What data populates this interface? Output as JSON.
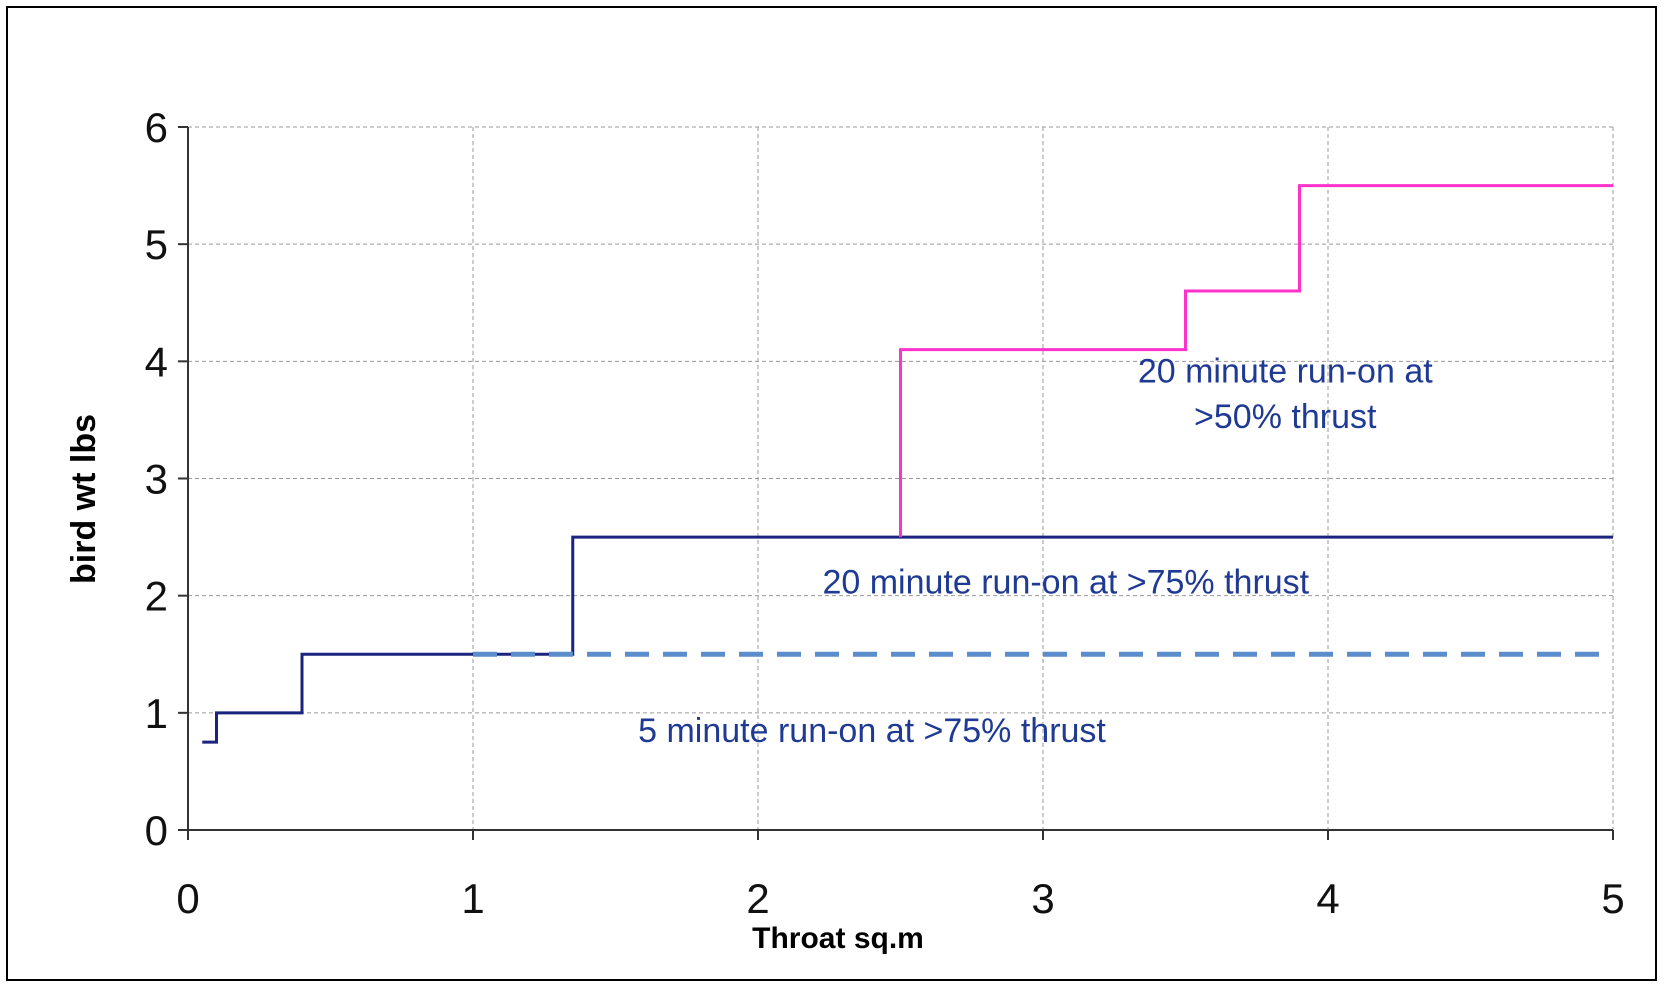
{
  "chart_data": {
    "type": "line",
    "title": "",
    "xlabel": "Throat sq.m",
    "ylabel": "bird wt  lbs",
    "xlim": [
      0,
      5
    ],
    "ylim": [
      0,
      6
    ],
    "xticks": [
      "0",
      "1",
      "2",
      "3",
      "4",
      "5"
    ],
    "yticks": [
      "0",
      "1",
      "2",
      "3",
      "4",
      "5",
      "6"
    ],
    "grid": true,
    "legend": "none",
    "series": [
      {
        "style": "solid",
        "color": "#1a237e",
        "step": true,
        "x": [
          0.05,
          0.1,
          0.1,
          0.4,
          0.4,
          1.35,
          1.35,
          5.0
        ],
        "y": [
          0.75,
          0.75,
          1.0,
          1.0,
          1.5,
          1.5,
          2.5,
          2.5
        ]
      },
      {
        "style": "solid",
        "color": "#ff33cc",
        "step": true,
        "x": [
          2.5,
          2.5,
          3.5,
          3.5,
          3.9,
          3.9,
          5.0
        ],
        "y": [
          2.5,
          4.1,
          4.1,
          4.6,
          4.6,
          5.5,
          5.5
        ]
      },
      {
        "style": "dashed",
        "color": "#5b8ccc",
        "step": false,
        "x": [
          1.0,
          5.0
        ],
        "y": [
          1.5,
          1.5
        ]
      }
    ],
    "annotations": [
      {
        "text": "20 minute run-on at",
        "x": 3.85,
        "y": 3.82
      },
      {
        "text": ">50% thrust",
        "x": 3.85,
        "y": 3.43
      },
      {
        "text": "20 minute run-on at >75% thrust",
        "x": 3.08,
        "y": 2.02
      },
      {
        "text": "5 minute run-on at >75% thrust",
        "x": 2.4,
        "y": 0.75
      }
    ]
  }
}
